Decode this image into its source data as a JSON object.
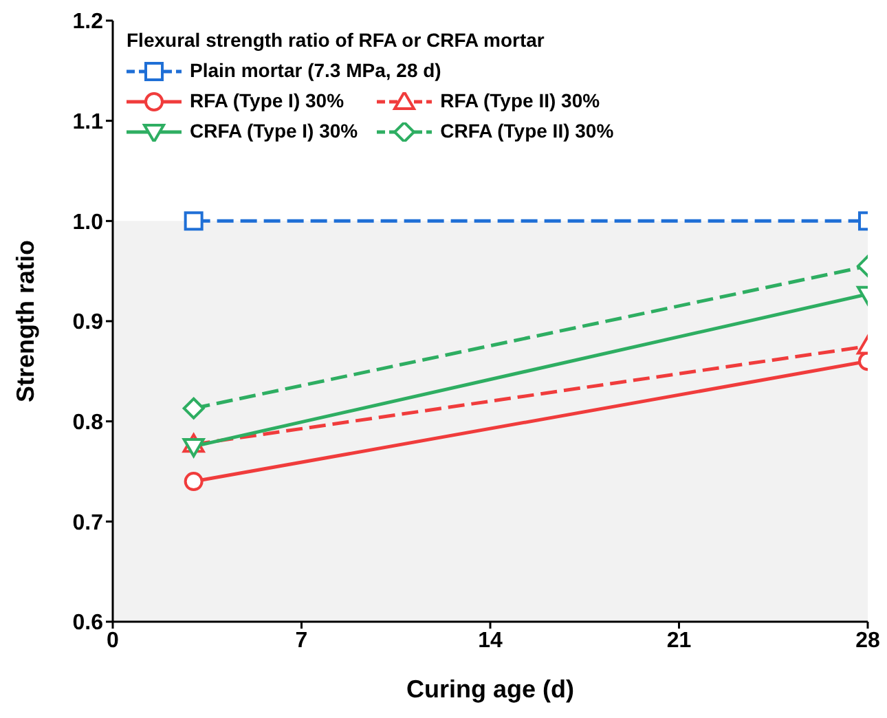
{
  "chart_data": {
    "type": "line",
    "xlabel": "Curing age (d)",
    "ylabel": "Strength ratio",
    "legend_title": "Flexural strength ratio of RFA or CRFA mortar",
    "x": [
      3,
      28
    ],
    "xlim": [
      0,
      28
    ],
    "xticks": [
      0,
      7,
      14,
      21,
      28
    ],
    "ylim": [
      0.6,
      1.2
    ],
    "yticks": [
      0.6,
      0.7,
      0.8,
      0.9,
      {
        "value": 1,
        "label": "1.0"
      },
      1.1,
      1.2
    ],
    "grid": false,
    "legend": "top left",
    "bands": [
      {
        "axis": "y",
        "from": 0.6,
        "to": 1.0,
        "color": "#f2f2f2"
      }
    ],
    "series": [
      {
        "name": "Plain mortar (7.3 MPa, 28 d)",
        "color": "#1f6fd6",
        "values": [
          1.0,
          1.0
        ],
        "marker": "square",
        "line_style": "dashed"
      },
      {
        "name": "RFA (Type I) 30%",
        "color": "#f03c3c",
        "values": [
          0.74,
          0.86
        ],
        "marker": "circle",
        "line_style": "solid"
      },
      {
        "name": "RFA (Type II) 30%",
        "color": "#f03c3c",
        "values": [
          0.777,
          0.875
        ],
        "marker": "triangle",
        "line_style": "dashed"
      },
      {
        "name": "CRFA (Type I) 30%",
        "color": "#2eae62",
        "values": [
          0.775,
          0.927
        ],
        "marker": "triangle-down",
        "line_style": "solid"
      },
      {
        "name": "CRFA (Type II) 30%",
        "color": "#2eae62",
        "values": [
          0.813,
          0.955
        ],
        "marker": "diamond",
        "line_style": "dashed"
      }
    ]
  }
}
